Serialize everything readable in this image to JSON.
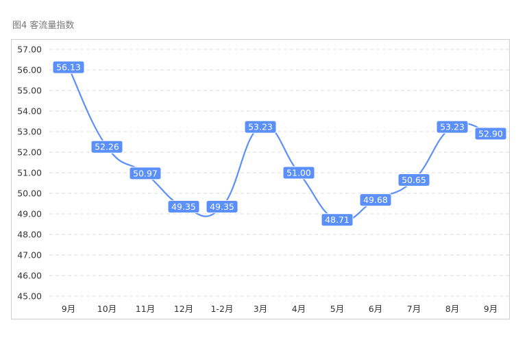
{
  "figure": {
    "title": "图4  客流量指数"
  },
  "colors": {
    "line": "#5b8ff9",
    "label_bg": "#5b8ff9",
    "grid": "#dcdcdc",
    "frame": "#cfcfcf"
  },
  "chart_data": {
    "type": "line",
    "title": "",
    "xlabel": "",
    "ylabel": "",
    "categories": [
      "9月",
      "10月",
      "11月",
      "12月",
      "1-2月",
      "3月",
      "4月",
      "5月",
      "6月",
      "7月",
      "8月",
      "9月"
    ],
    "series": [
      {
        "values": [
          56.13,
          52.26,
          50.97,
          49.35,
          49.35,
          53.23,
          51.0,
          48.71,
          49.68,
          50.65,
          53.23,
          52.9
        ]
      }
    ],
    "data_labels": [
      "56.13",
      "52.26",
      "50.97",
      "49.35",
      "49.35",
      "53.23",
      "51.00",
      "48.71",
      "49.68",
      "50.65",
      "53.23",
      "52.90"
    ],
    "yticks": [
      "57.00",
      "56.00",
      "55.00",
      "54.00",
      "53.00",
      "52.00",
      "51.00",
      "50.00",
      "49.00",
      "48.00",
      "47.00",
      "46.00",
      "45.00"
    ],
    "ylim": [
      45,
      57
    ],
    "grid": true,
    "smooth": true,
    "legend": "none"
  }
}
